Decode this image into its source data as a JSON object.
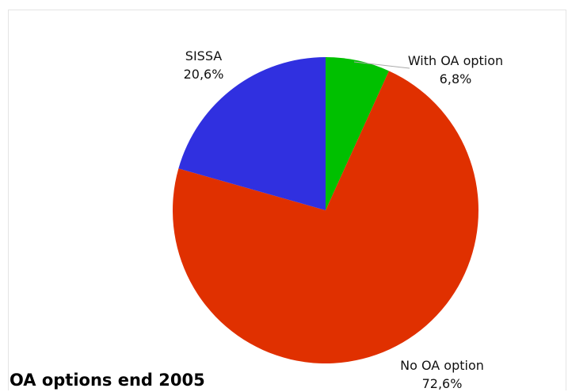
{
  "chart_data": {
    "type": "pie",
    "title": "OA options end 2005",
    "slices": [
      {
        "label": "With OA option",
        "value": 6.8,
        "value_label": "6,8%",
        "color": "#00c000"
      },
      {
        "label": "No OA option",
        "value": 72.6,
        "value_label": "72,6%",
        "color": "#e03000"
      },
      {
        "label": "SISSA",
        "value": 20.6,
        "value_label": "20,6%",
        "color": "#3030e0"
      }
    ],
    "start": "12 o'clock, clockwise",
    "legend": "none"
  }
}
